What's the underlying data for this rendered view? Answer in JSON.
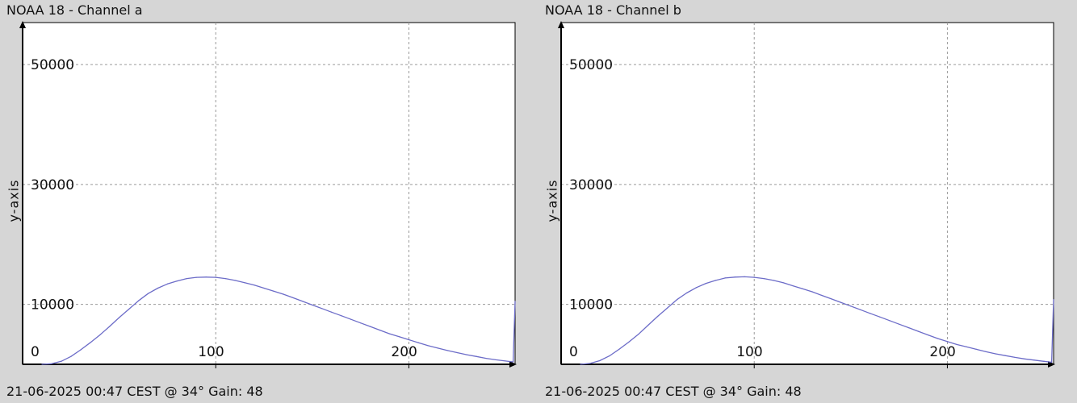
{
  "colors": {
    "background": "#d6d6d6",
    "plot_background": "#ffffff",
    "line": "#6c6cc8",
    "grid": "#9a9a9a",
    "axis": "#000000"
  },
  "chart_data": [
    {
      "type": "line",
      "title": "NOAA 18 - Channel a",
      "footer": "21-06-2025 00:47 CEST @ 34° Gain: 48",
      "xlabel": "",
      "ylabel": "y-axis",
      "xlim": [
        0,
        255
      ],
      "ylim": [
        0,
        57000
      ],
      "xticks": [
        0,
        100,
        200
      ],
      "yticks": [
        10000,
        30000,
        50000
      ],
      "grid": true,
      "series": [
        {
          "x": [
            10,
            15,
            20,
            25,
            30,
            35,
            40,
            45,
            50,
            55,
            60,
            65,
            70,
            75,
            80,
            85,
            90,
            95,
            100,
            105,
            110,
            115,
            120,
            125,
            130,
            135,
            140,
            145,
            150,
            155,
            160,
            165,
            170,
            175,
            180,
            185,
            190,
            195,
            200,
            205,
            210,
            215,
            220,
            225,
            230,
            235,
            240,
            245,
            250,
            254,
            255
          ],
          "values": [
            0,
            100,
            500,
            1300,
            2400,
            3600,
            4900,
            6300,
            7800,
            9200,
            10600,
            11800,
            12700,
            13400,
            13900,
            14300,
            14500,
            14550,
            14500,
            14300,
            14000,
            13600,
            13200,
            12700,
            12200,
            11700,
            11100,
            10500,
            9900,
            9300,
            8700,
            8100,
            7500,
            6900,
            6300,
            5700,
            5100,
            4600,
            4100,
            3600,
            3100,
            2700,
            2300,
            1950,
            1600,
            1300,
            1000,
            750,
            550,
            400,
            10500
          ]
        }
      ]
    },
    {
      "type": "line",
      "title": "NOAA 18 - Channel b",
      "footer": "21-06-2025 00:47 CEST @ 34° Gain: 48",
      "xlabel": "",
      "ylabel": "y-axis",
      "xlim": [
        0,
        255
      ],
      "ylim": [
        0,
        57000
      ],
      "xticks": [
        0,
        100,
        200
      ],
      "yticks": [
        10000,
        30000,
        50000
      ],
      "grid": true,
      "series": [
        {
          "x": [
            10,
            15,
            20,
            25,
            30,
            35,
            40,
            45,
            50,
            55,
            60,
            65,
            70,
            75,
            80,
            85,
            90,
            95,
            100,
            105,
            110,
            115,
            120,
            125,
            130,
            135,
            140,
            145,
            150,
            155,
            160,
            165,
            170,
            175,
            180,
            185,
            190,
            195,
            200,
            205,
            210,
            215,
            220,
            225,
            230,
            235,
            240,
            245,
            250,
            254,
            255
          ],
          "values": [
            0,
            150,
            600,
            1400,
            2500,
            3700,
            5000,
            6500,
            8000,
            9400,
            10800,
            11900,
            12800,
            13500,
            14000,
            14400,
            14550,
            14600,
            14500,
            14300,
            14000,
            13600,
            13100,
            12600,
            12100,
            11500,
            10900,
            10300,
            9700,
            9100,
            8500,
            7900,
            7300,
            6700,
            6100,
            5500,
            4900,
            4300,
            3800,
            3300,
            2900,
            2500,
            2100,
            1750,
            1450,
            1150,
            900,
            700,
            500,
            350,
            10800
          ]
        }
      ]
    }
  ]
}
